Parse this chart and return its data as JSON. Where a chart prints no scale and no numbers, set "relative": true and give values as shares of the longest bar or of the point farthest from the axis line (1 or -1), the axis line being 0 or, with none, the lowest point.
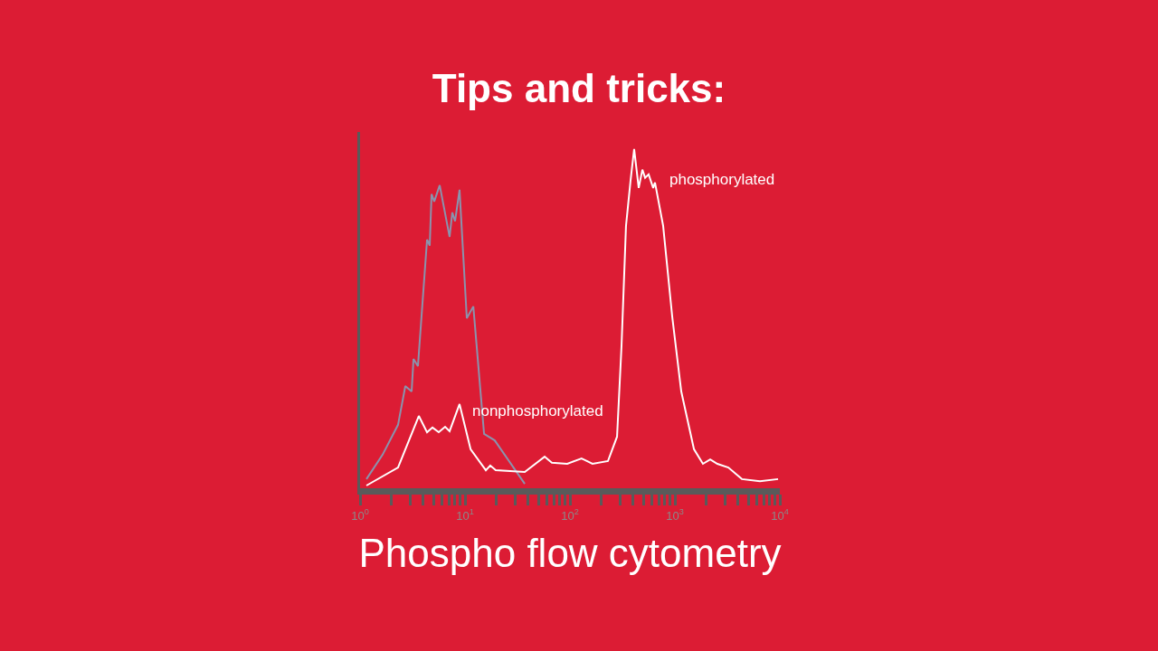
{
  "chart_data": {
    "type": "line",
    "title": "Tips and tricks:",
    "xlabel": "Phospho flow cytometry",
    "log": "x",
    "relative": true,
    "grid": false,
    "tick_labels": "x",
    "xlim": [
      1,
      10000
    ],
    "xticks": [
      {
        "value": 1,
        "label": "10$^{0}$"
      },
      {
        "value": 2,
        "label": null
      },
      {
        "value": 3,
        "label": null
      },
      {
        "value": 4,
        "label": null
      },
      {
        "value": 5,
        "label": null
      },
      {
        "value": 6,
        "label": null
      },
      {
        "value": 7,
        "label": null
      },
      {
        "value": 8,
        "label": null
      },
      {
        "value": 9,
        "label": null
      },
      {
        "value": 10,
        "label": "10$^{1}$"
      },
      {
        "value": 20,
        "label": null
      },
      {
        "value": 30,
        "label": null
      },
      {
        "value": 40,
        "label": null
      },
      {
        "value": 50,
        "label": null
      },
      {
        "value": 60,
        "label": null
      },
      {
        "value": 70,
        "label": null
      },
      {
        "value": 80,
        "label": null
      },
      {
        "value": 90,
        "label": null
      },
      {
        "value": 100,
        "label": "10$^{2}$"
      },
      {
        "value": 200,
        "label": null
      },
      {
        "value": 300,
        "label": null
      },
      {
        "value": 400,
        "label": null
      },
      {
        "value": 500,
        "label": null
      },
      {
        "value": 600,
        "label": null
      },
      {
        "value": 700,
        "label": null
      },
      {
        "value": 800,
        "label": null
      },
      {
        "value": 900,
        "label": null
      },
      {
        "value": 1000,
        "label": "10$^{3}$"
      },
      {
        "value": 2000,
        "label": null
      },
      {
        "value": 3000,
        "label": null
      },
      {
        "value": 4000,
        "label": null
      },
      {
        "value": 5000,
        "label": null
      },
      {
        "value": 6000,
        "label": null
      },
      {
        "value": 7000,
        "label": null
      },
      {
        "value": 8000,
        "label": null
      },
      {
        "value": 9000,
        "label": null
      },
      {
        "value": 10000,
        "label": "10$^{4}$"
      }
    ],
    "series": [
      {
        "color": "#8a93ad",
        "x": [
          1.15,
          1.64,
          2.3,
          2.7,
          3.1,
          3.23,
          3.56,
          4.35,
          4.61,
          4.8,
          5.09,
          5.74,
          7.13,
          7.57,
          8.04,
          8.87,
          10.4,
          12.0,
          15.2,
          19.2,
          37.1
        ],
        "values": [
          0.027,
          0.099,
          0.187,
          0.301,
          0.285,
          0.381,
          0.36,
          0.733,
          0.715,
          0.867,
          0.845,
          0.893,
          0.741,
          0.813,
          0.787,
          0.88,
          0.501,
          0.536,
          0.16,
          0.141,
          0.013
        ]
      },
      {
        "color": "#ffffff",
        "x": [
          1.15,
          2.3,
          3.63,
          4.35,
          4.9,
          5.62,
          6.46,
          7.13,
          8.87,
          11.3,
          15.8,
          17.4,
          19.6,
          37.1,
          57.4,
          67.3,
          94.2,
          129,
          164,
          230,
          281,
          310,
          342,
          378,
          409,
          452,
          490,
          520,
          562,
          621,
          646,
          773,
          942,
          1150,
          1520,
          1850,
          2170,
          2540,
          3230,
          4350,
          6460,
          9620
        ],
        "values": [
          0.008,
          0.061,
          0.213,
          0.165,
          0.179,
          0.165,
          0.181,
          0.168,
          0.248,
          0.115,
          0.053,
          0.067,
          0.053,
          0.048,
          0.093,
          0.075,
          0.072,
          0.088,
          0.072,
          0.08,
          0.152,
          0.419,
          0.773,
          0.907,
          1,
          0.885,
          0.939,
          0.915,
          0.925,
          0.885,
          0.901,
          0.773,
          0.507,
          0.285,
          0.115,
          0.072,
          0.085,
          0.072,
          0.061,
          0.027,
          0.021,
          0.027
        ]
      }
    ],
    "annotations": [
      "nonphosphorylated",
      "phosphorylated"
    ]
  }
}
